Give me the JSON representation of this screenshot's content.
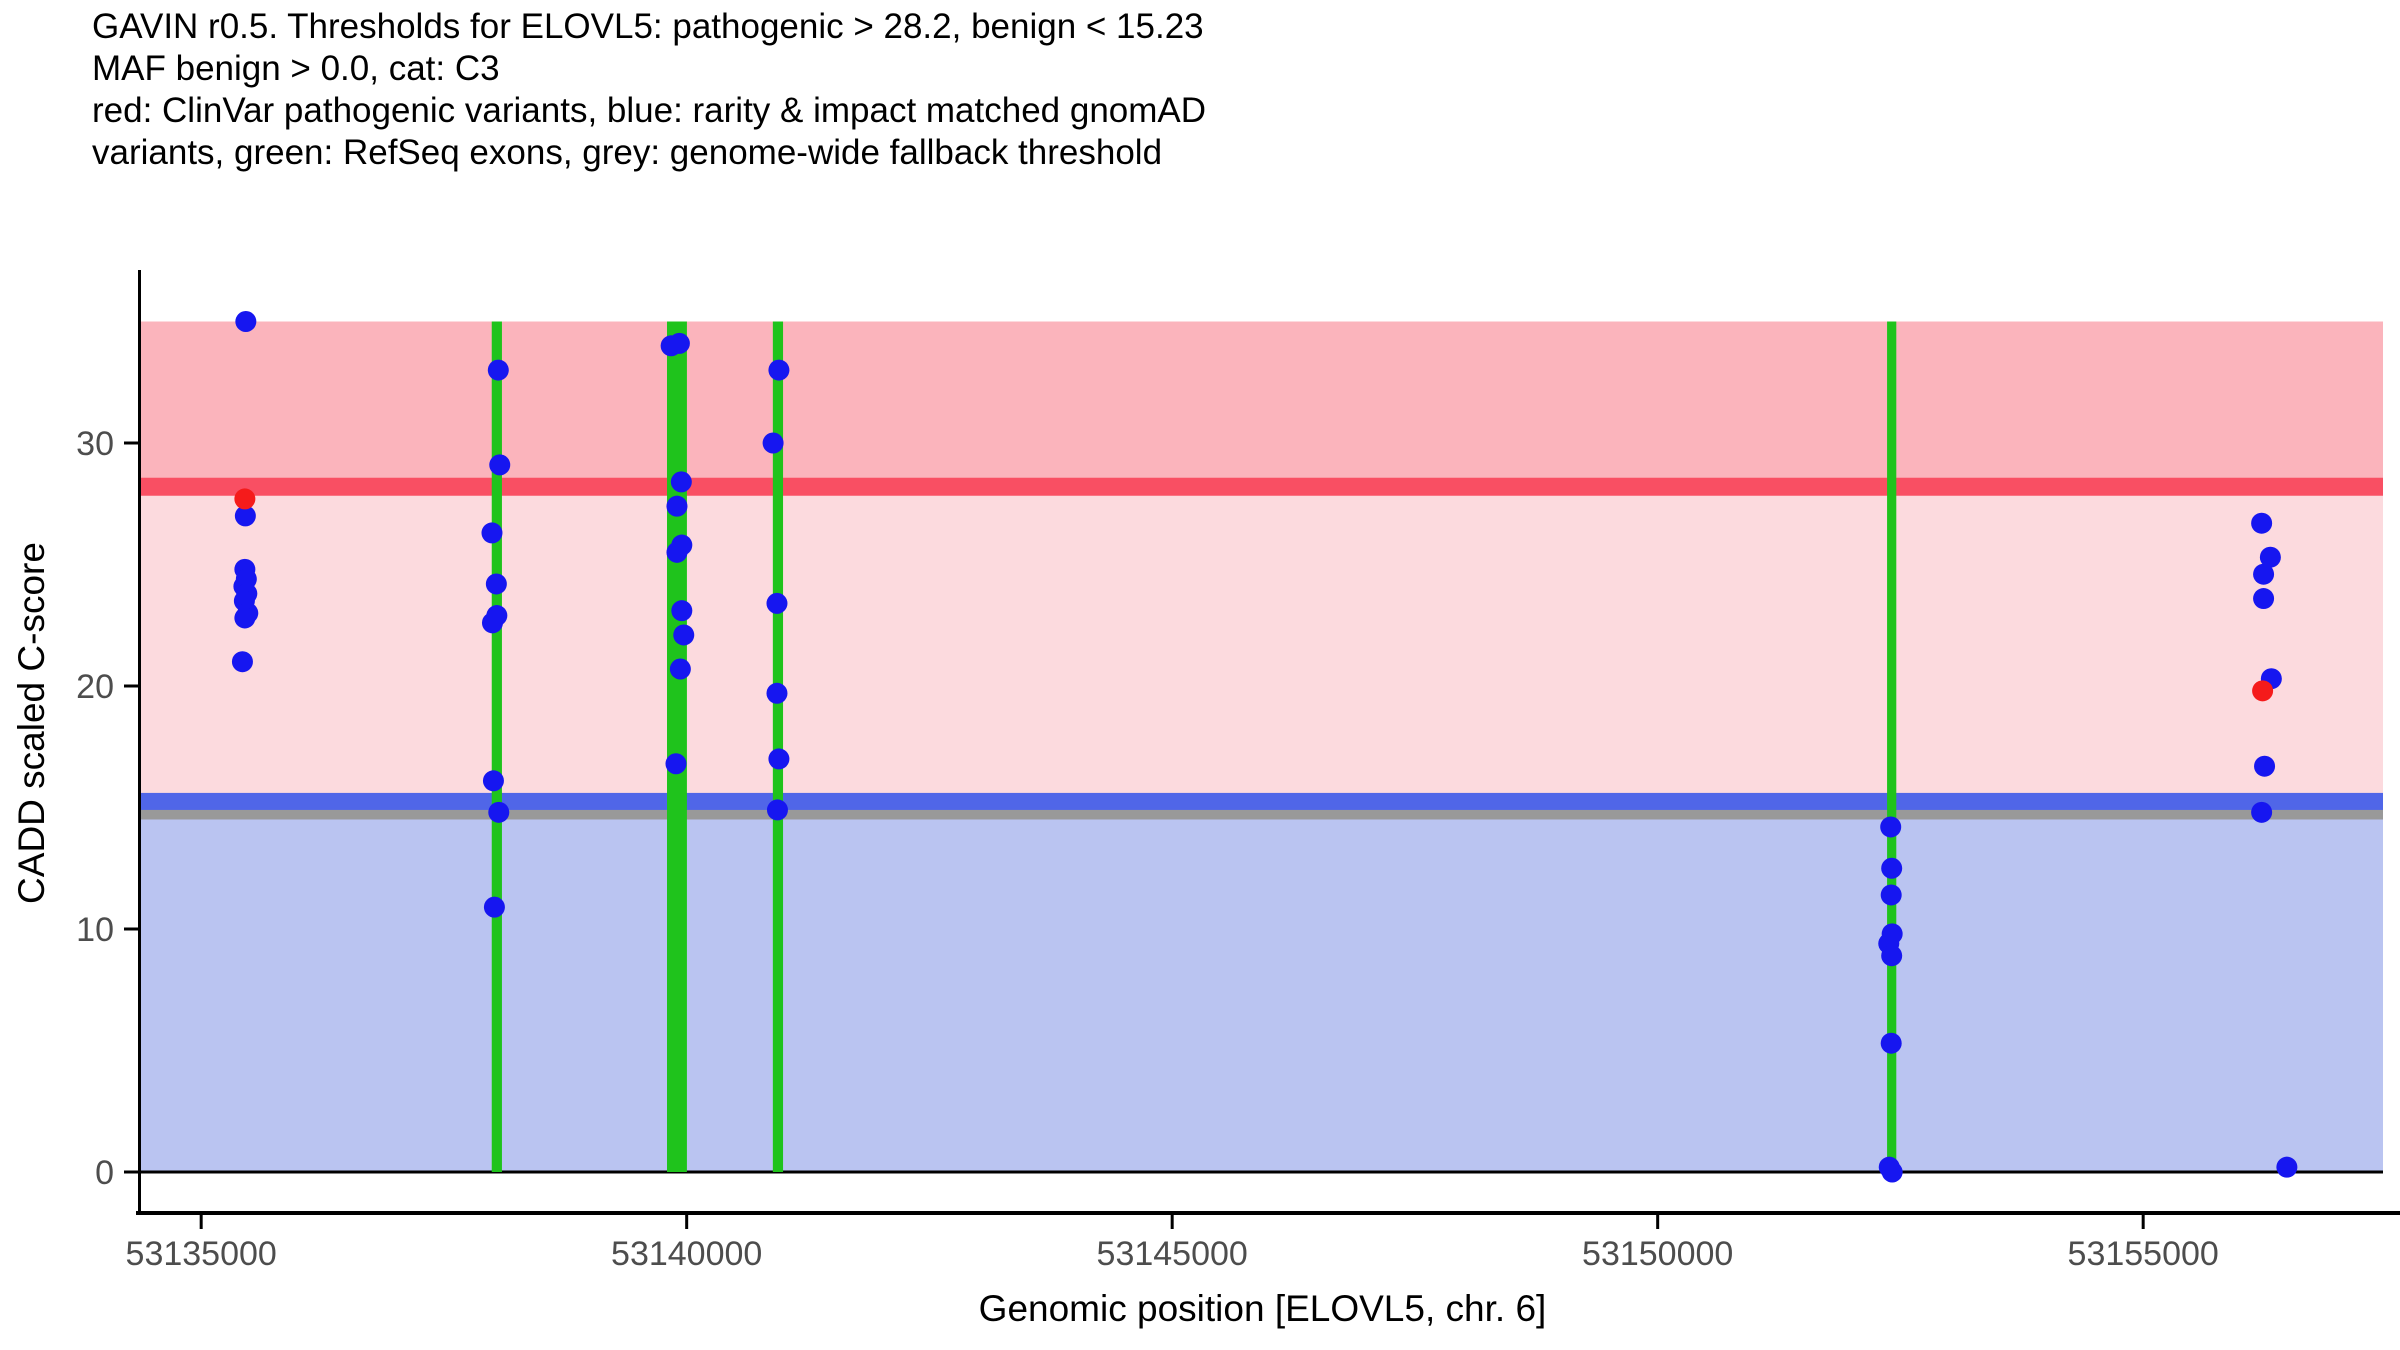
{
  "title_lines": [
    "GAVIN r0.5. Thresholds for ELOVL5: pathogenic > 28.2, benign < 15.23",
    "MAF benign > 0.0, cat: C3",
    "red: ClinVar pathogenic variants, blue: rarity & impact matched gnomAD",
    "variants, green: RefSeq exons, grey: genome-wide fallback threshold"
  ],
  "colors": {
    "band_pathogenic": "#fbb4bc",
    "band_intermediate": "#fcdade",
    "band_benign": "#bac4f1",
    "pathogenic_line": "#f94f63",
    "benign_line": "#5066e8",
    "fallback_line": "#999999",
    "exon_green": "#1fc31c",
    "point_blue": "#1616f0",
    "point_red": "#f51b1b",
    "tick_label": "#4d4d4d",
    "axis": "#000000",
    "zero_line": "#000000"
  },
  "chart_data": {
    "type": "scatter",
    "title": "GAVIN r0.5. Thresholds for ELOVL5: pathogenic > 28.2, benign < 15.23 MAF benign > 0.0, cat: C3",
    "xlabel": "Genomic position [ELOVL5, chr. 6]",
    "ylabel": "CADD scaled C-score",
    "xlim": [
      53134370,
      53157470
    ],
    "ylim": [
      0,
      35
    ],
    "x_ticks": [
      53135000,
      53140000,
      53145000,
      53150000,
      53155000
    ],
    "y_ticks": [
      0,
      10,
      20,
      30
    ],
    "grid": false,
    "legend_position": "none",
    "thresholds": {
      "pathogenic": 28.2,
      "benign": 15.23,
      "genome_wide_fallback": 15.0,
      "shaded_region_top": 35.0
    },
    "exons_refseq": [
      {
        "pos": 53138045,
        "width_bp": 105
      },
      {
        "pos": 53139900,
        "width_bp": 205
      },
      {
        "pos": 53140940,
        "width_bp": 105
      },
      {
        "pos": 53152410,
        "width_bp": 95
      }
    ],
    "series": [
      {
        "name": "rarity & impact matched gnomAD variants",
        "color_key": "point_blue",
        "points": [
          [
            53135460,
            35.0
          ],
          [
            53135455,
            27.0
          ],
          [
            53135450,
            24.8
          ],
          [
            53135465,
            24.4
          ],
          [
            53135440,
            24.1
          ],
          [
            53135470,
            23.8
          ],
          [
            53135445,
            23.5
          ],
          [
            53135480,
            23.0
          ],
          [
            53135450,
            22.8
          ],
          [
            53135425,
            21.0
          ],
          [
            53138060,
            33.0
          ],
          [
            53138075,
            29.1
          ],
          [
            53137995,
            26.3
          ],
          [
            53138040,
            24.2
          ],
          [
            53138045,
            22.9
          ],
          [
            53138000,
            22.6
          ],
          [
            53138010,
            16.1
          ],
          [
            53138065,
            14.8
          ],
          [
            53138020,
            10.9
          ],
          [
            53139840,
            34.0
          ],
          [
            53139925,
            34.1
          ],
          [
            53139945,
            28.4
          ],
          [
            53139900,
            27.4
          ],
          [
            53139950,
            25.8
          ],
          [
            53139900,
            25.5
          ],
          [
            53139950,
            23.1
          ],
          [
            53139970,
            22.1
          ],
          [
            53139935,
            20.7
          ],
          [
            53139890,
            16.8
          ],
          [
            53140950,
            33.0
          ],
          [
            53140890,
            30.0
          ],
          [
            53140930,
            23.4
          ],
          [
            53140930,
            19.7
          ],
          [
            53140950,
            17.0
          ],
          [
            53140935,
            14.9
          ],
          [
            53152400,
            14.2
          ],
          [
            53152410,
            12.5
          ],
          [
            53152405,
            11.4
          ],
          [
            53152415,
            9.8
          ],
          [
            53152380,
            9.4
          ],
          [
            53152410,
            8.9
          ],
          [
            53152405,
            5.3
          ],
          [
            53152385,
            0.2
          ],
          [
            53152415,
            0.0
          ],
          [
            53156220,
            26.7
          ],
          [
            53156310,
            25.3
          ],
          [
            53156240,
            24.6
          ],
          [
            53156240,
            23.6
          ],
          [
            53156320,
            20.3
          ],
          [
            53156250,
            16.7
          ],
          [
            53156220,
            14.8
          ],
          [
            53156480,
            0.2
          ]
        ]
      },
      {
        "name": "ClinVar pathogenic variants",
        "color_key": "point_red",
        "points": [
          [
            53135450,
            27.7
          ],
          [
            53156230,
            19.8
          ]
        ]
      }
    ]
  }
}
